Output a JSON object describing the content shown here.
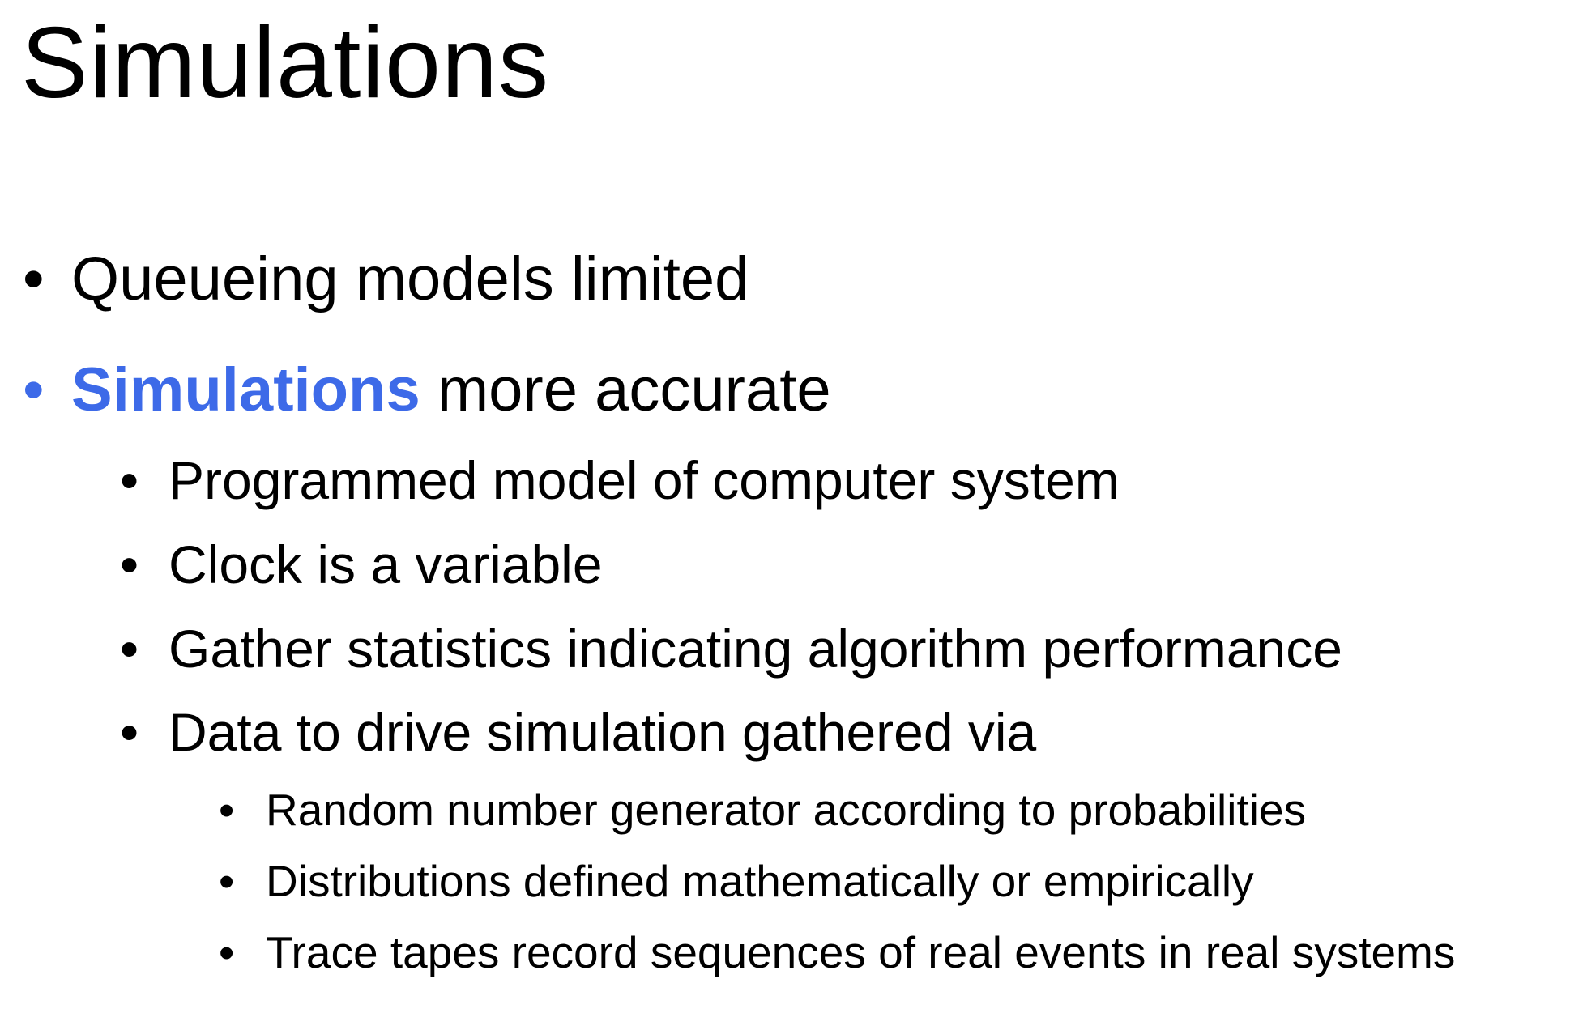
{
  "slide": {
    "title": "Simulations",
    "bullet_char": "•",
    "accent_color": "#3d6ae8",
    "items": [
      {
        "level": 1,
        "text": "Queueing models limited"
      },
      {
        "level": 1,
        "highlight": "Simulations",
        "text": " more accurate"
      },
      {
        "level": 2,
        "text": "Programmed model of computer system"
      },
      {
        "level": 2,
        "text": "Clock is a variable"
      },
      {
        "level": 2,
        "text": "Gather statistics  indicating algorithm performance"
      },
      {
        "level": 2,
        "text": "Data to drive simulation gathered via"
      },
      {
        "level": 3,
        "text": "Random number generator according to probabilities"
      },
      {
        "level": 3,
        "text": "Distributions defined mathematically or empirically"
      },
      {
        "level": 3,
        "text": "Trace tapes record sequences of real events in real systems"
      }
    ]
  }
}
